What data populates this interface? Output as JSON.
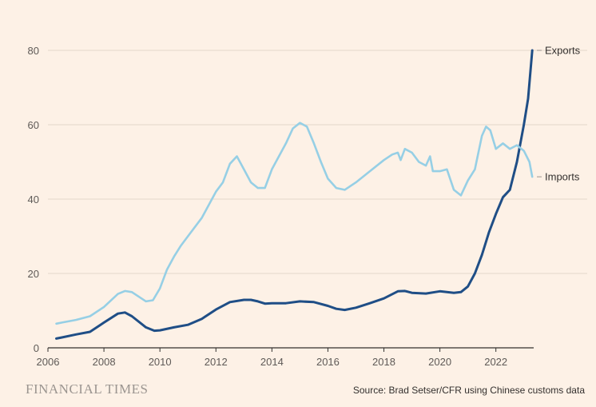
{
  "chart_data": {
    "type": "line",
    "xlim": [
      2006,
      2023.35
    ],
    "ylim": [
      0,
      80
    ],
    "grid": true,
    "legend": "direct labels at line ends (right)",
    "x_ticks": [
      "2006",
      "2008",
      "2010",
      "2012",
      "2014",
      "2016",
      "2018",
      "2020",
      "2022"
    ],
    "y_ticks": [
      "0",
      "20",
      "40",
      "60",
      "80"
    ],
    "series": [
      {
        "name": "Exports",
        "color": "#1f4e86",
        "points": [
          [
            2006.3,
            2.5
          ],
          [
            2006.5,
            2.8
          ],
          [
            2007.0,
            3.6
          ],
          [
            2007.5,
            4.3
          ],
          [
            2008.0,
            6.8
          ],
          [
            2008.5,
            9.2
          ],
          [
            2008.75,
            9.5
          ],
          [
            2009.0,
            8.5
          ],
          [
            2009.5,
            5.5
          ],
          [
            2009.8,
            4.6
          ],
          [
            2010.0,
            4.7
          ],
          [
            2010.5,
            5.5
          ],
          [
            2011.0,
            6.2
          ],
          [
            2011.5,
            7.8
          ],
          [
            2012.0,
            10.3
          ],
          [
            2012.5,
            12.3
          ],
          [
            2013.0,
            12.9
          ],
          [
            2013.25,
            12.9
          ],
          [
            2013.5,
            12.5
          ],
          [
            2013.75,
            11.9
          ],
          [
            2014.0,
            12.0
          ],
          [
            2014.5,
            12.0
          ],
          [
            2015.0,
            12.5
          ],
          [
            2015.5,
            12.3
          ],
          [
            2016.0,
            11.3
          ],
          [
            2016.3,
            10.5
          ],
          [
            2016.6,
            10.2
          ],
          [
            2017.0,
            10.8
          ],
          [
            2017.5,
            12.0
          ],
          [
            2018.0,
            13.3
          ],
          [
            2018.5,
            15.2
          ],
          [
            2018.75,
            15.3
          ],
          [
            2019.0,
            14.8
          ],
          [
            2019.5,
            14.6
          ],
          [
            2020.0,
            15.2
          ],
          [
            2020.5,
            14.8
          ],
          [
            2020.75,
            15.0
          ],
          [
            2021.0,
            16.5
          ],
          [
            2021.25,
            20.0
          ],
          [
            2021.5,
            25.0
          ],
          [
            2021.75,
            31.0
          ],
          [
            2022.0,
            36.0
          ],
          [
            2022.25,
            40.5
          ],
          [
            2022.5,
            42.5
          ],
          [
            2022.75,
            50.0
          ],
          [
            2023.0,
            60.0
          ],
          [
            2023.15,
            67.0
          ],
          [
            2023.3,
            80.0
          ]
        ]
      },
      {
        "name": "Imports",
        "color": "#96cfe5",
        "points": [
          [
            2006.3,
            6.5
          ],
          [
            2006.5,
            6.8
          ],
          [
            2007.0,
            7.5
          ],
          [
            2007.5,
            8.5
          ],
          [
            2008.0,
            11.0
          ],
          [
            2008.5,
            14.5
          ],
          [
            2008.75,
            15.3
          ],
          [
            2009.0,
            15.0
          ],
          [
            2009.5,
            12.5
          ],
          [
            2009.75,
            12.8
          ],
          [
            2010.0,
            16.0
          ],
          [
            2010.25,
            21.0
          ],
          [
            2010.5,
            24.5
          ],
          [
            2010.75,
            27.5
          ],
          [
            2011.0,
            30.0
          ],
          [
            2011.5,
            35.0
          ],
          [
            2012.0,
            42.0
          ],
          [
            2012.25,
            44.5
          ],
          [
            2012.5,
            49.5
          ],
          [
            2012.75,
            51.5
          ],
          [
            2013.0,
            48.0
          ],
          [
            2013.25,
            44.5
          ],
          [
            2013.5,
            43.0
          ],
          [
            2013.75,
            43.0
          ],
          [
            2014.0,
            48.0
          ],
          [
            2014.5,
            55.0
          ],
          [
            2014.75,
            59.0
          ],
          [
            2015.0,
            60.5
          ],
          [
            2015.25,
            59.5
          ],
          [
            2015.5,
            55.0
          ],
          [
            2015.75,
            50.0
          ],
          [
            2016.0,
            45.5
          ],
          [
            2016.3,
            43.0
          ],
          [
            2016.6,
            42.5
          ],
          [
            2017.0,
            44.5
          ],
          [
            2017.5,
            47.5
          ],
          [
            2018.0,
            50.5
          ],
          [
            2018.3,
            52.0
          ],
          [
            2018.5,
            52.5
          ],
          [
            2018.6,
            50.5
          ],
          [
            2018.75,
            53.5
          ],
          [
            2019.0,
            52.5
          ],
          [
            2019.25,
            50.0
          ],
          [
            2019.5,
            49.0
          ],
          [
            2019.65,
            51.5
          ],
          [
            2019.75,
            47.5
          ],
          [
            2020.0,
            47.5
          ],
          [
            2020.25,
            48.0
          ],
          [
            2020.5,
            42.5
          ],
          [
            2020.75,
            41.0
          ],
          [
            2021.0,
            45.0
          ],
          [
            2021.25,
            48.0
          ],
          [
            2021.5,
            57.0
          ],
          [
            2021.65,
            59.5
          ],
          [
            2021.8,
            58.5
          ],
          [
            2022.0,
            53.5
          ],
          [
            2022.25,
            55.0
          ],
          [
            2022.5,
            53.5
          ],
          [
            2022.75,
            54.5
          ],
          [
            2023.0,
            53.0
          ],
          [
            2023.2,
            50.0
          ],
          [
            2023.3,
            46.0
          ]
        ]
      }
    ]
  },
  "source": "Source: Brad Setser/CFR using Chinese customs data",
  "brand": "FINANCIAL TIMES",
  "colors": {
    "background": "#fdf1e6",
    "grid": "#e3d6ca",
    "axis": "#33302e",
    "text": "#5e5a57"
  }
}
